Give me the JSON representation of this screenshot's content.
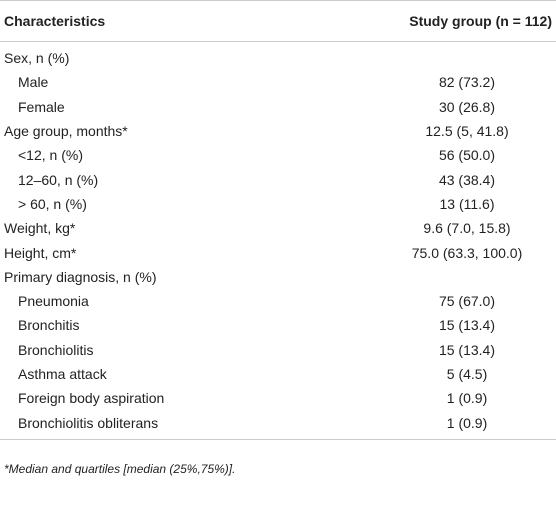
{
  "table": {
    "header": [
      "Characteristics",
      "Study group (n = 112)"
    ],
    "rows": [
      {
        "label": "Sex, n (%)",
        "items": [
          {
            "label": "Male",
            "value": "82 (73.2)"
          },
          {
            "label": "Female",
            "value": "30 (26.8)"
          }
        ]
      },
      {
        "label": "Age group, months*",
        "value": "12.5 (5, 41.8)",
        "items": [
          {
            "label": "<12, n (%)",
            "value": "56 (50.0)"
          },
          {
            "label": "12–60, n (%)",
            "value": "43 (38.4)"
          },
          {
            "label": "> 60, n (%)",
            "value": "13 (11.6)"
          }
        ]
      },
      {
        "label": "Weight, kg*",
        "value": "9.6 (7.0, 15.8)"
      },
      {
        "label": "Height, cm*",
        "value": "75.0 (63.3, 100.0)"
      },
      {
        "label": "Primary diagnosis, n (%)",
        "items": [
          {
            "label": "Pneumonia",
            "value": "75 (67.0)"
          },
          {
            "label": "Bronchitis",
            "value": "15 (13.4)"
          },
          {
            "label": "Bronchiolitis",
            "value": "15 (13.4)"
          },
          {
            "label": "Asthma attack",
            "value": "5 (4.5)"
          },
          {
            "label": "Foreign body aspiration",
            "value": "1 (0.9)"
          },
          {
            "label": "Bronchiolitis obliterans",
            "value": "1 (0.9)"
          }
        ]
      }
    ],
    "footnote": "*Median and quartiles [median (25%,75%)]."
  }
}
